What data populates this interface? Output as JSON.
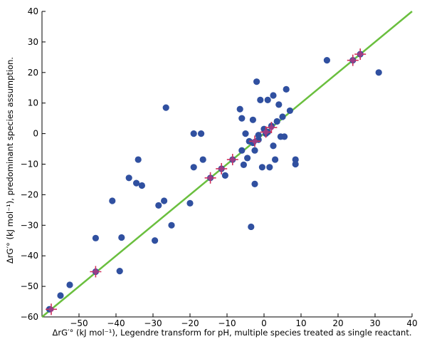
{
  "chart_data": {
    "type": "scatter",
    "xlabel": "ΔrG′° (kJ mol⁻¹), Legendre transform for pH, multiple species treated as single reactant.",
    "ylabel": "ΔrG′° (kJ mol⁻¹), predominant species assumption.",
    "xlim": [
      -60,
      40
    ],
    "ylim": [
      -60,
      40
    ],
    "x_ticks": [
      -50,
      -40,
      -30,
      -20,
      -10,
      0,
      10,
      20,
      30,
      40
    ],
    "y_ticks": [
      -60,
      -50,
      -40,
      -30,
      -20,
      -10,
      0,
      10,
      20,
      30,
      40
    ],
    "x_tick_labels": [
      "−50",
      "−40",
      "−30",
      "−20",
      "−10",
      "0",
      "10",
      "20",
      "30",
      "40"
    ],
    "y_tick_labels": [
      "−60",
      "−50",
      "−40",
      "−30",
      "−20",
      "−10",
      "0",
      "10",
      "20",
      "30",
      "40"
    ],
    "grid": false,
    "reference_line": {
      "type": "identity",
      "color": "#6abf3e",
      "from": -60,
      "to": 40
    },
    "series": [
      {
        "marker": "circle",
        "color": "#3050a0",
        "points": [
          [
            -58,
            -57.5
          ],
          [
            -55,
            -53
          ],
          [
            -52.5,
            -49.5
          ],
          [
            -45.5,
            -45.2
          ],
          [
            -45.5,
            -34.2
          ],
          [
            -39,
            -45
          ],
          [
            -38.5,
            -34
          ],
          [
            -41,
            -22
          ],
          [
            -36.5,
            -14.5
          ],
          [
            -34.5,
            -16.2
          ],
          [
            -34,
            -8.5
          ],
          [
            -33,
            -17
          ],
          [
            -29.5,
            -35
          ],
          [
            -28.5,
            -23.5
          ],
          [
            -27,
            -22
          ],
          [
            -26.5,
            8.5
          ],
          [
            -25,
            -30
          ],
          [
            -20,
            -22.8
          ],
          [
            -19,
            0
          ],
          [
            -19,
            -11
          ],
          [
            -17,
            0
          ],
          [
            -16.5,
            -8.5
          ],
          [
            -14.5,
            -14.5
          ],
          [
            -11.5,
            -11.5
          ],
          [
            -10.5,
            -13.7
          ],
          [
            -8.5,
            -8.5
          ],
          [
            -6.5,
            8
          ],
          [
            -6,
            5
          ],
          [
            -5.5,
            -10.2
          ],
          [
            -6,
            -5.5
          ],
          [
            -5,
            0
          ],
          [
            -4.5,
            -8
          ],
          [
            -4,
            -2.5
          ],
          [
            -3.5,
            -30.5
          ],
          [
            -3,
            4.5
          ],
          [
            -2.5,
            -16.5
          ],
          [
            -2,
            17
          ],
          [
            -1.5,
            -2
          ],
          [
            -1,
            11
          ],
          [
            -0.5,
            -11
          ],
          [
            0,
            1.5
          ],
          [
            0.5,
            0
          ],
          [
            1,
            11
          ],
          [
            1.5,
            -11
          ],
          [
            2,
            2.5
          ],
          [
            2.5,
            12.5
          ],
          [
            2.5,
            -4
          ],
          [
            3,
            -8.5
          ],
          [
            3.5,
            4
          ],
          [
            4,
            9.5
          ],
          [
            4.5,
            -1
          ],
          [
            5,
            5.5
          ],
          [
            5.5,
            -1
          ],
          [
            6,
            14.5
          ],
          [
            7,
            7.5
          ],
          [
            8.5,
            -8.5
          ],
          [
            8.5,
            -10
          ],
          [
            17,
            24
          ],
          [
            24,
            24
          ],
          [
            26,
            26
          ],
          [
            31,
            20
          ],
          [
            -3,
            -3
          ],
          [
            -2.5,
            -5.5
          ],
          [
            1,
            0.5
          ],
          [
            -1.5,
            -0.5
          ]
        ]
      },
      {
        "marker": "plus-highlight",
        "color": "#d0305a",
        "points": [
          [
            -57.5,
            -57.5
          ],
          [
            -45.5,
            -45.2
          ],
          [
            -14.5,
            -14.5
          ],
          [
            -11.5,
            -11.5
          ],
          [
            -8.5,
            -8.5
          ],
          [
            -2.5,
            -2.5
          ],
          [
            0.5,
            0.5
          ],
          [
            2,
            2
          ],
          [
            24,
            24
          ],
          [
            26,
            26
          ]
        ]
      }
    ]
  }
}
